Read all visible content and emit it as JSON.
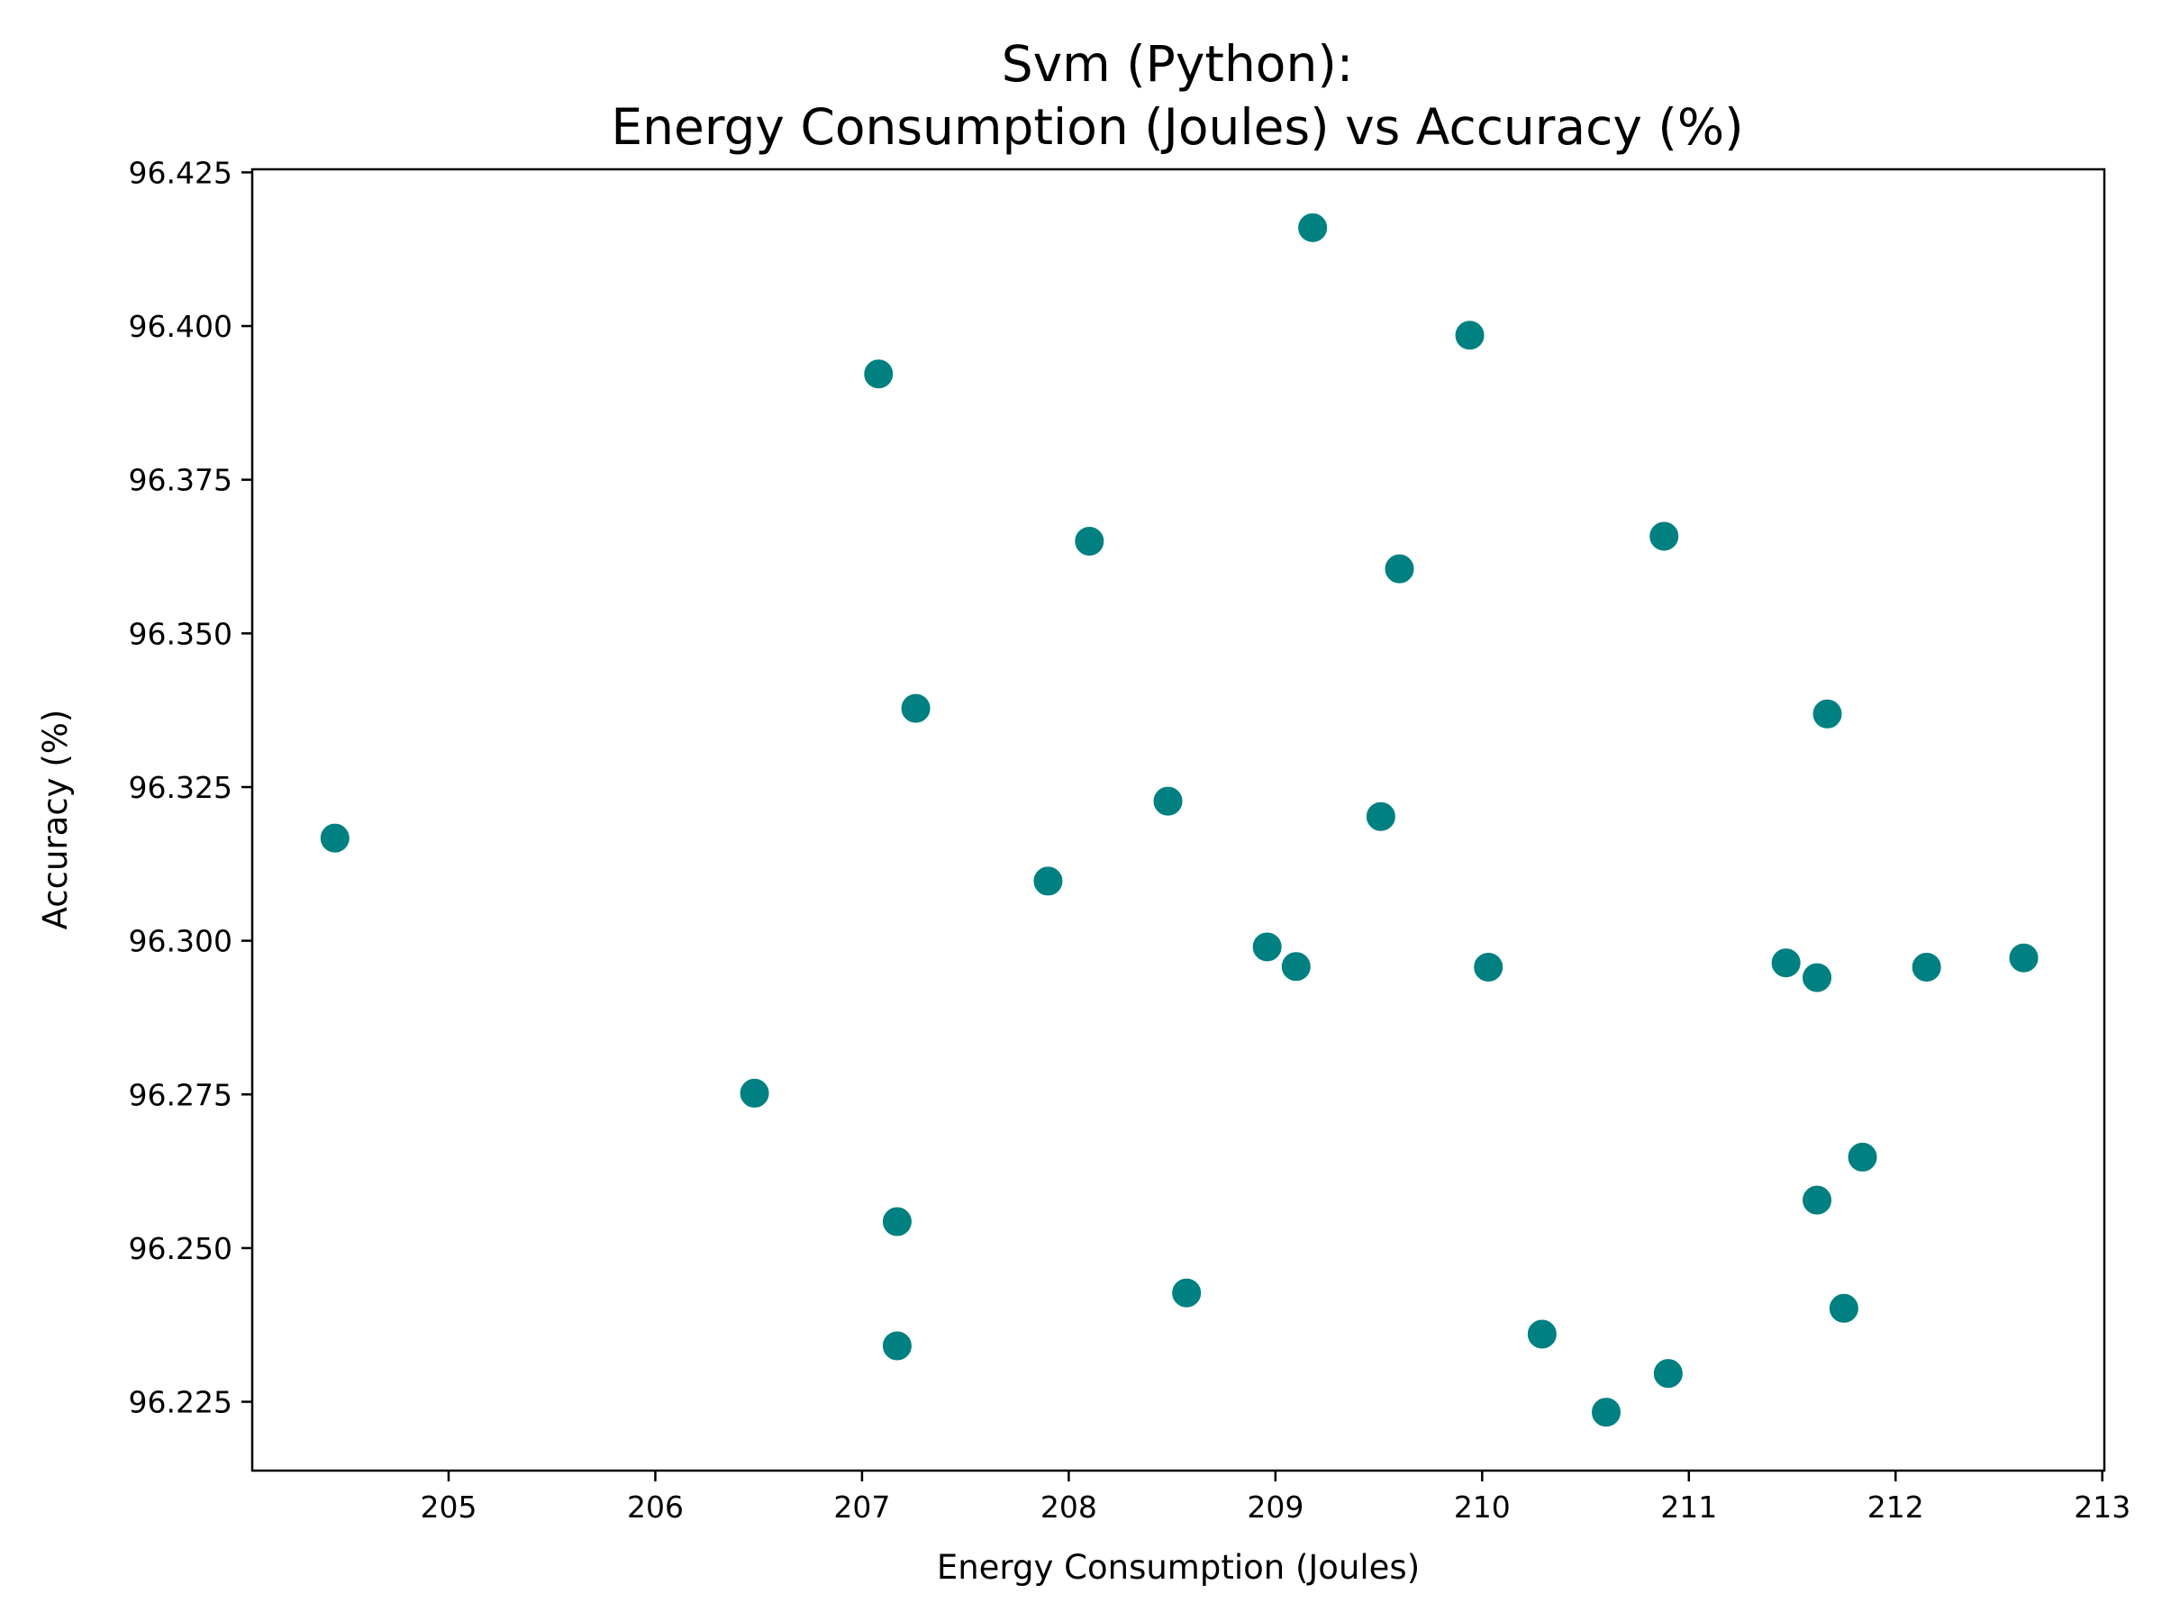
{
  "chart_data": {
    "type": "scatter",
    "title_line1": "Svm (Python):",
    "title_line2": "Energy Consumption (Joules) vs Accuracy (%)",
    "xlabel": "Energy Consumption (Joules)",
    "ylabel": "Accuracy (%)",
    "xlim": [
      204.05,
      213.01
    ],
    "ylim": [
      96.2138,
      96.4255
    ],
    "xticks": [
      205,
      206,
      207,
      208,
      209,
      210,
      211,
      212,
      213
    ],
    "yticks": [
      96.225,
      96.25,
      96.275,
      96.3,
      96.325,
      96.35,
      96.375,
      96.4,
      96.425
    ],
    "xtick_labels": [
      "205",
      "206",
      "207",
      "208",
      "209",
      "210",
      "211",
      "212",
      "213"
    ],
    "ytick_labels": [
      "96.225",
      "96.250",
      "96.275",
      "96.300",
      "96.325",
      "96.350",
      "96.375",
      "96.400",
      "96.425"
    ],
    "marker_color": "#008080",
    "grid": false,
    "points": [
      {
        "x": 204.45,
        "y": 96.3167
      },
      {
        "x": 206.48,
        "y": 96.2752
      },
      {
        "x": 207.08,
        "y": 96.3922
      },
      {
        "x": 207.17,
        "y": 96.2543
      },
      {
        "x": 207.17,
        "y": 96.2341
      },
      {
        "x": 207.26,
        "y": 96.3378
      },
      {
        "x": 207.9,
        "y": 96.3097
      },
      {
        "x": 208.1,
        "y": 96.365
      },
      {
        "x": 208.48,
        "y": 96.3227
      },
      {
        "x": 208.57,
        "y": 96.2427
      },
      {
        "x": 208.96,
        "y": 96.299
      },
      {
        "x": 209.1,
        "y": 96.2958
      },
      {
        "x": 209.18,
        "y": 96.416
      },
      {
        "x": 209.51,
        "y": 96.3202
      },
      {
        "x": 209.6,
        "y": 96.3605
      },
      {
        "x": 209.94,
        "y": 96.3985
      },
      {
        "x": 210.03,
        "y": 96.2957
      },
      {
        "x": 210.29,
        "y": 96.236
      },
      {
        "x": 210.6,
        "y": 96.2233
      },
      {
        "x": 210.88,
        "y": 96.3658
      },
      {
        "x": 210.9,
        "y": 96.2296
      },
      {
        "x": 211.47,
        "y": 96.2964
      },
      {
        "x": 211.62,
        "y": 96.294
      },
      {
        "x": 211.62,
        "y": 96.2578
      },
      {
        "x": 211.67,
        "y": 96.3369
      },
      {
        "x": 211.75,
        "y": 96.2402
      },
      {
        "x": 211.84,
        "y": 96.2648
      },
      {
        "x": 212.15,
        "y": 96.2957
      },
      {
        "x": 212.62,
        "y": 96.2972
      }
    ]
  }
}
